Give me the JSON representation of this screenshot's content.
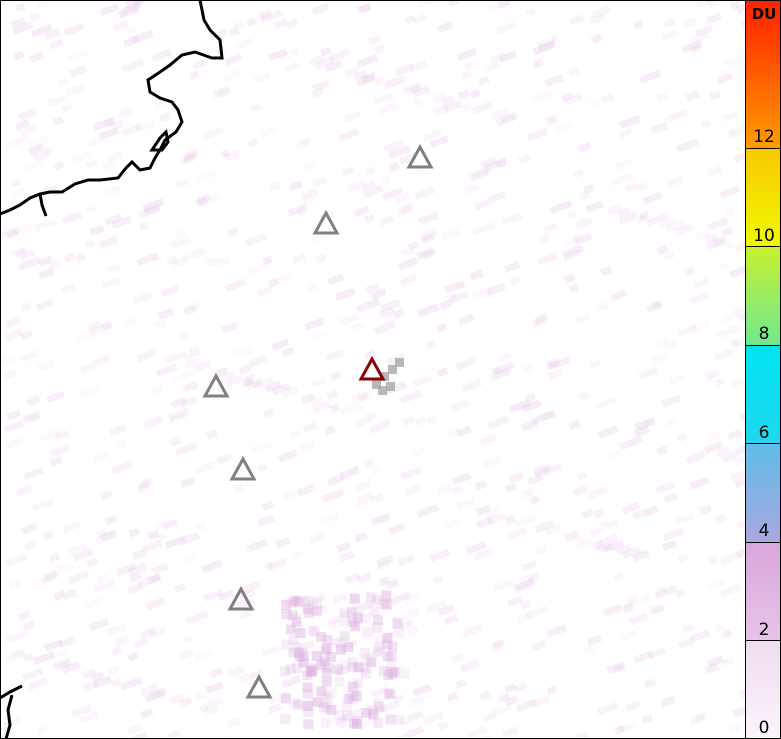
{
  "colorbar": {
    "unit": "DU",
    "ticks": [
      "0",
      "2",
      "4",
      "6",
      "8",
      "10",
      "12"
    ],
    "range": [
      0,
      15
    ],
    "colors": [
      "#fbf4fb",
      "#e6c4e6",
      "#a8a8e0",
      "#00e4f0",
      "#70e890",
      "#f0f800",
      "#ff9c00",
      "#ff2000"
    ]
  },
  "markers": {
    "reference_volcano_color": "#8b0000",
    "other_volcano_color": "#808080",
    "icon": "triangle-outline"
  }
}
